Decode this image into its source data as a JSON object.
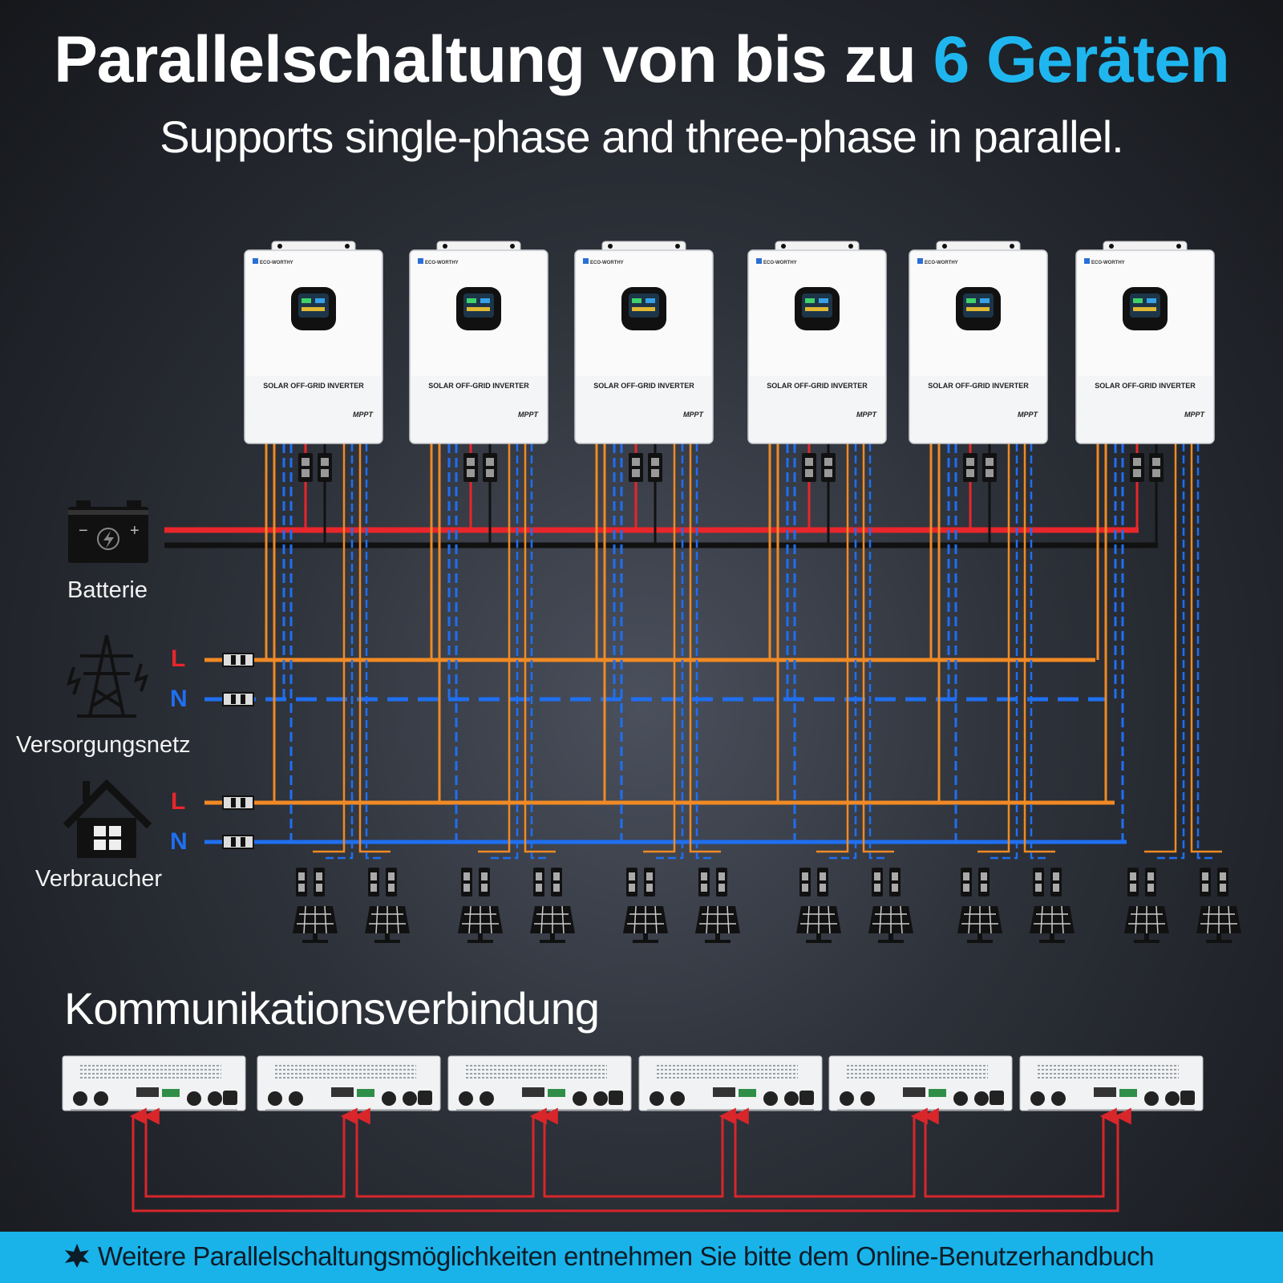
{
  "title": {
    "main": "Parallelschaltung von bis zu ",
    "highlight": "6 Geräten"
  },
  "subtitle": "Supports single-phase and three-phase in parallel.",
  "inverter": {
    "brand": "ECO-WORTHY",
    "model": "SOLAR OFF-GRID INVERTER",
    "badge": "MPPT",
    "count": 6
  },
  "sources": {
    "battery": "Batterie",
    "grid": {
      "label": "Versorgungsnetz",
      "l": "L",
      "n": "N"
    },
    "load": {
      "label": "Verbraucher",
      "l": "L",
      "n": "N"
    }
  },
  "communication": {
    "title": "Kommunikationsverbindung"
  },
  "footer": {
    "note": "Weitere Parallelschaltungsmöglichkeiten entnehmen Sie bitte dem Online-Benutzerhandbuch"
  },
  "colors": {
    "accent": "#1fb6ef",
    "battery_pos": "#e8262b",
    "battery_neg": "#111111",
    "line_l": "#f08a24",
    "line_n": "#1f6ff0",
    "comm": "#d8262b",
    "footer_bg": "#19b3ea"
  },
  "icons": [
    "battery-icon",
    "power-tower-icon",
    "house-icon",
    "solar-panel-icon",
    "star-icon"
  ]
}
